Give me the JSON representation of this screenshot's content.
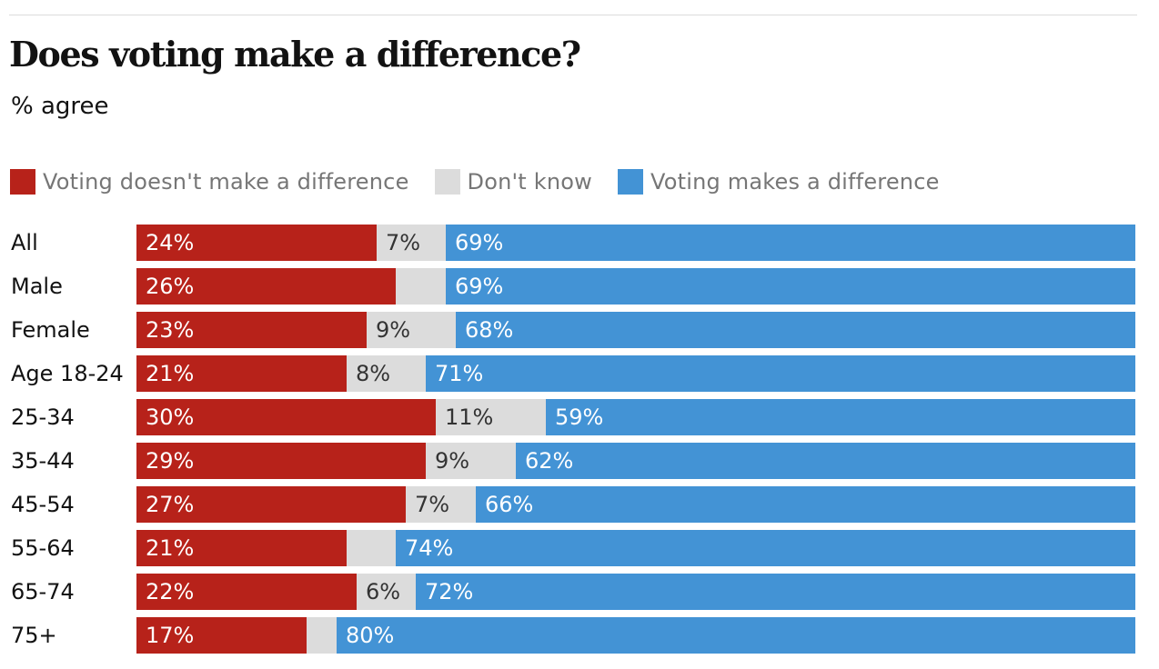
{
  "chart_data": {
    "type": "bar",
    "orientation": "horizontal",
    "stacked": true,
    "title": "Does voting make a difference?",
    "subtitle": "% agree",
    "categories": [
      "All",
      "Male",
      "Female",
      "Age 18-24",
      "25-34",
      "35-44",
      "45-54",
      "55-64",
      "65-74",
      "75+"
    ],
    "series": [
      {
        "name": "Voting doesn't make a difference",
        "color": "#b7221a",
        "values": [
          24,
          26,
          23,
          21,
          30,
          29,
          27,
          21,
          22,
          17
        ],
        "labels": [
          "24%",
          "26%",
          "23%",
          "21%",
          "30%",
          "29%",
          "27%",
          "21%",
          "22%",
          "17%"
        ],
        "label_color": "#ffffff"
      },
      {
        "name": "Don't know",
        "color": "#dcdcdc",
        "values": [
          7,
          5,
          9,
          8,
          11,
          9,
          7,
          5,
          6,
          3
        ],
        "labels": [
          "7%",
          "",
          "9%",
          "8%",
          "11%",
          "9%",
          "7%",
          "",
          "6%",
          ""
        ],
        "label_color": "#333333"
      },
      {
        "name": "Voting makes a difference",
        "color": "#4393d5",
        "values": [
          69,
          69,
          68,
          71,
          59,
          62,
          66,
          74,
          72,
          80
        ],
        "labels": [
          "69%",
          "69%",
          "68%",
          "71%",
          "59%",
          "62%",
          "66%",
          "74%",
          "72%",
          "80%"
        ],
        "label_color": "#ffffff"
      }
    ],
    "xlim": [
      0,
      100
    ],
    "legend_position": "top-left",
    "grid": false
  }
}
